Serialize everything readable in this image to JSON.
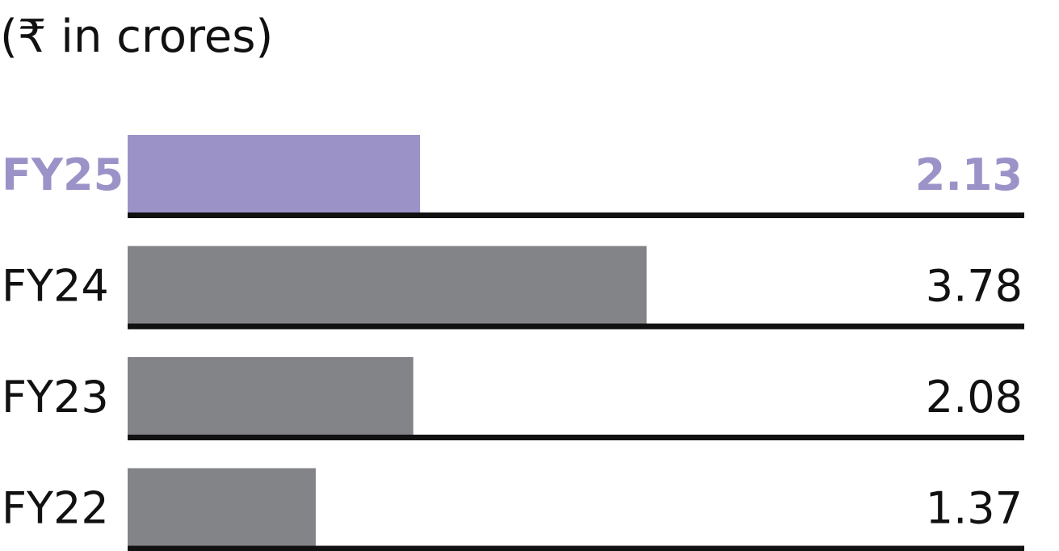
{
  "chart_data": {
    "type": "bar",
    "orientation": "horizontal",
    "unit_label": "(₹ in crores)",
    "categories": [
      "FY25",
      "FY24",
      "FY23",
      "FY22"
    ],
    "values": [
      2.13,
      3.78,
      2.08,
      1.37
    ],
    "value_labels": [
      "2.13",
      "3.78",
      "2.08",
      "1.37"
    ],
    "highlight_index": 0,
    "colors": {
      "highlight": "#9b93c8",
      "default": "#838487",
      "baseline": "#111111",
      "default_text": "#111111"
    },
    "xlim": [
      0,
      6.53
    ],
    "grid": false,
    "legend": "none"
  }
}
